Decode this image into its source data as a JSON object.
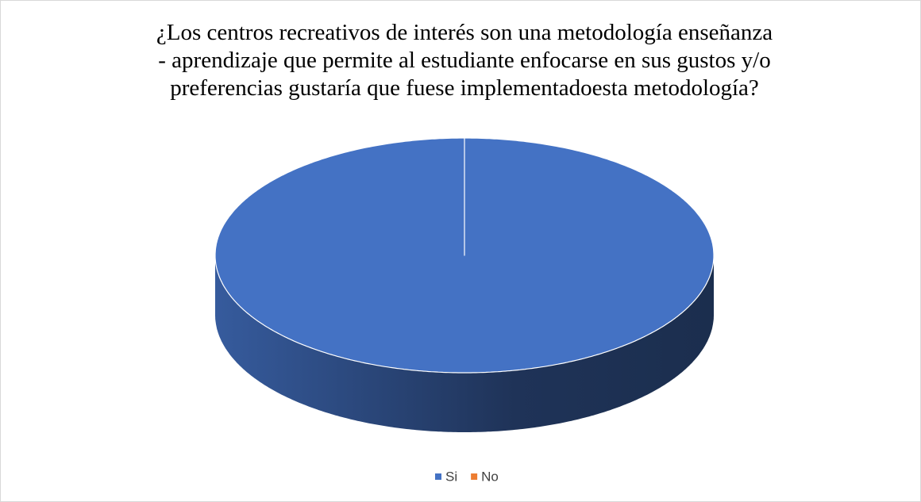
{
  "chart_data": {
    "type": "pie",
    "title": "¿Los centros recreativos de interés son una metodología enseñanza - aprendizaje que permite al estudiante enfocarse en sus gustos y/o preferencias gustaría que fuese implementadoesta metodología?",
    "categories": [
      "Si",
      "No"
    ],
    "values": [
      100,
      0
    ],
    "colors": [
      "#4472c4",
      "#ed7d31"
    ],
    "legend": "bottom"
  }
}
